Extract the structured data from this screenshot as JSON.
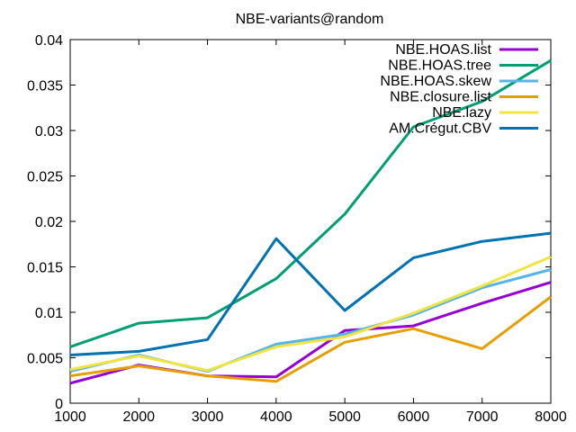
{
  "chart_data": {
    "type": "line",
    "title": "NBE-variants@random",
    "xlabel": "",
    "ylabel": "",
    "x": [
      1000,
      2000,
      3000,
      4000,
      5000,
      6000,
      7000,
      8000
    ],
    "xlim": [
      1000,
      8000
    ],
    "ylim": [
      0,
      0.04
    ],
    "xticks": [
      "1000",
      "2000",
      "3000",
      "4000",
      "5000",
      "6000",
      "7000",
      "8000"
    ],
    "yticks": [
      "0",
      "0.005",
      "0.01",
      "0.015",
      "0.02",
      "0.025",
      "0.03",
      "0.035",
      "0.04"
    ],
    "grid": false,
    "legend_position": "top-right",
    "series": [
      {
        "name": "NBE.HOAS.list",
        "color": "#9400d3",
        "values": [
          0.0022,
          0.0042,
          0.003,
          0.0029,
          0.008,
          0.0085,
          0.011,
          0.0133
        ]
      },
      {
        "name": "NBE.HOAS.tree",
        "color": "#009e73",
        "values": [
          0.0062,
          0.0088,
          0.0094,
          0.0137,
          0.0208,
          0.0304,
          0.0332,
          0.0377
        ]
      },
      {
        "name": "NBE.HOAS.skew",
        "color": "#56b4e9",
        "values": [
          0.0035,
          0.0053,
          0.0035,
          0.0065,
          0.0076,
          0.0097,
          0.0127,
          0.0147
        ]
      },
      {
        "name": "NBE.closure.list",
        "color": "#e69f00",
        "values": [
          0.003,
          0.0041,
          0.003,
          0.0024,
          0.0067,
          0.0082,
          0.006,
          0.0117
        ]
      },
      {
        "name": "NBE.lazy",
        "color": "#f0e442",
        "values": [
          0.0037,
          0.0052,
          0.0036,
          0.0062,
          0.0073,
          0.0099,
          0.0129,
          0.0161
        ]
      },
      {
        "name": "AM.Crégut.CBV",
        "color": "#0072b2",
        "values": [
          0.0053,
          0.0057,
          0.007,
          0.0181,
          0.0102,
          0.016,
          0.0178,
          0.0187
        ]
      }
    ]
  }
}
